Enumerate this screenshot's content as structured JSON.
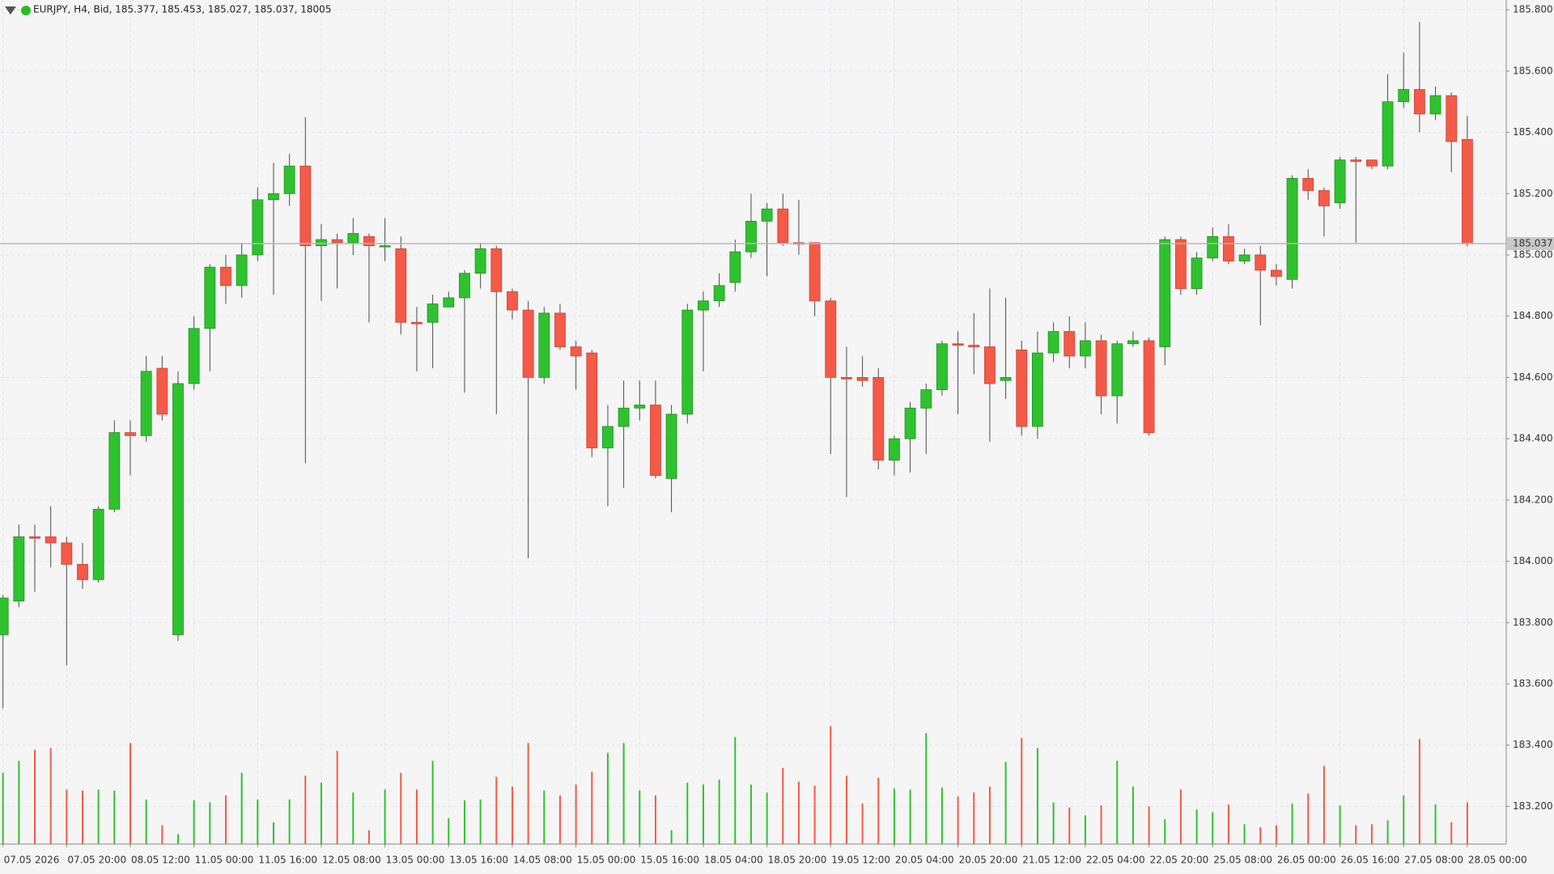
{
  "chart_data": {
    "type": "candlestick",
    "title": "EURJPY, H4, Bid, 185.377, 185.453, 185.027, 185.037, 18005",
    "categories": [
      "07.05 2026",
      null,
      null,
      null,
      "07.05 20:00",
      null,
      null,
      null,
      "08.05 12:00",
      null,
      null,
      null,
      "11.05 00:00",
      null,
      null,
      null,
      "11.05 16:00",
      null,
      null,
      null,
      "12.05 08:00",
      null,
      null,
      null,
      "13.05 00:00",
      null,
      null,
      null,
      "13.05 16:00",
      null,
      null,
      null,
      "14.05 08:00",
      null,
      null,
      null,
      "15.05 00:00",
      null,
      null,
      null,
      "15.05 16:00",
      null,
      null,
      null,
      "18.05 04:00",
      null,
      null,
      null,
      "18.05 20:00",
      null,
      null,
      null,
      "19.05 12:00",
      null,
      null,
      null,
      "20.05 04:00",
      null,
      null,
      null,
      "20.05 20:00",
      null,
      null,
      null,
      "21.05 12:00",
      null,
      null,
      null,
      "22.05 04:00",
      null,
      null,
      null,
      "22.05 20:00",
      null,
      null,
      null,
      "25.05 08:00",
      null,
      null,
      null,
      "26.05 00:00",
      null,
      null,
      null,
      "26.05 16:00",
      null,
      null,
      null,
      "27.05 08:00",
      null,
      null,
      null,
      "28.05 00:00"
    ],
    "open": [
      183.76,
      183.87,
      184.08,
      184.08,
      184.06,
      183.99,
      183.94,
      184.17,
      184.42,
      184.41,
      184.63,
      183.76,
      184.58,
      184.76,
      184.96,
      184.9,
      185.0,
      185.18,
      185.2,
      185.29,
      185.03,
      185.05,
      185.04,
      185.06,
      185.03,
      185.02,
      184.78,
      184.78,
      184.83,
      184.86,
      184.94,
      185.02,
      184.88,
      184.82,
      184.6,
      184.81,
      184.7,
      184.68,
      184.37,
      184.44,
      184.5,
      184.51,
      184.27,
      184.48,
      184.82,
      184.85,
      184.91,
      185.01,
      185.11,
      185.15,
      185.04,
      185.04,
      184.85,
      184.6,
      184.6,
      184.6,
      184.33,
      184.4,
      184.5,
      184.56,
      184.71,
      184.705,
      184.7,
      184.59,
      184.69,
      184.44,
      184.68,
      184.75,
      184.67,
      184.72,
      184.54,
      184.71,
      184.72,
      184.7,
      185.05,
      184.89,
      184.99,
      185.06,
      184.98,
      185.0,
      184.95,
      184.92,
      185.25,
      185.21,
      185.17,
      185.31,
      185.31,
      185.29,
      185.5,
      185.54,
      185.46,
      185.52,
      185.377
    ],
    "high": [
      183.89,
      184.12,
      184.12,
      184.18,
      184.08,
      184.06,
      184.18,
      184.46,
      184.46,
      184.67,
      184.67,
      184.62,
      184.8,
      184.97,
      185.0,
      185.04,
      185.22,
      185.3,
      185.33,
      185.45,
      185.1,
      185.07,
      185.12,
      185.07,
      185.12,
      185.06,
      184.83,
      184.87,
      184.88,
      184.95,
      185.04,
      185.03,
      184.89,
      184.85,
      184.83,
      184.84,
      184.72,
      184.69,
      184.51,
      184.59,
      184.59,
      184.59,
      184.51,
      184.84,
      184.88,
      184.94,
      185.05,
      185.2,
      185.17,
      185.2,
      185.18,
      185.04,
      184.86,
      184.7,
      184.67,
      184.63,
      184.41,
      184.52,
      184.58,
      184.72,
      184.75,
      184.81,
      184.89,
      184.86,
      184.72,
      184.75,
      184.78,
      184.8,
      184.78,
      184.74,
      184.72,
      184.75,
      184.73,
      185.06,
      185.06,
      185.01,
      185.09,
      185.1,
      185.02,
      185.03,
      184.97,
      185.26,
      185.28,
      185.22,
      185.32,
      185.32,
      185.31,
      185.59,
      185.66,
      185.76,
      185.55,
      185.53,
      185.453
    ],
    "low": [
      183.52,
      183.85,
      183.9,
      183.98,
      183.66,
      183.91,
      183.93,
      184.16,
      184.28,
      184.39,
      184.46,
      183.74,
      184.56,
      184.62,
      184.84,
      184.86,
      184.98,
      184.87,
      185.16,
      184.32,
      184.85,
      184.89,
      185.0,
      184.78,
      184.98,
      184.74,
      184.62,
      184.63,
      184.83,
      184.55,
      184.89,
      184.48,
      184.79,
      184.01,
      184.58,
      184.69,
      184.56,
      184.34,
      184.18,
      184.24,
      184.46,
      184.27,
      184.16,
      184.45,
      184.62,
      184.83,
      184.88,
      184.99,
      184.93,
      185.03,
      185.0,
      184.8,
      184.35,
      184.21,
      184.57,
      184.3,
      184.28,
      184.29,
      184.35,
      184.54,
      184.48,
      184.61,
      184.39,
      184.53,
      184.41,
      184.4,
      184.65,
      184.63,
      184.63,
      184.48,
      184.45,
      184.7,
      184.41,
      184.64,
      184.87,
      184.87,
      184.98,
      184.97,
      184.97,
      184.77,
      184.9,
      184.89,
      185.18,
      185.06,
      185.15,
      185.04,
      185.28,
      185.28,
      185.48,
      185.4,
      185.44,
      185.27,
      185.027
    ],
    "close": [
      183.88,
      184.08,
      184.075,
      184.06,
      183.99,
      183.94,
      184.17,
      184.42,
      184.41,
      184.62,
      184.48,
      184.58,
      184.76,
      184.96,
      184.9,
      185.0,
      185.18,
      185.2,
      185.29,
      185.03,
      185.05,
      185.04,
      185.07,
      185.03,
      185.03,
      184.78,
      184.775,
      184.84,
      184.86,
      184.94,
      185.02,
      184.88,
      184.82,
      184.6,
      184.81,
      184.7,
      184.67,
      184.37,
      184.44,
      184.5,
      184.51,
      184.28,
      184.48,
      184.82,
      184.85,
      184.9,
      185.01,
      185.11,
      185.15,
      185.04,
      185.035,
      184.85,
      184.6,
      184.595,
      184.59,
      184.33,
      184.4,
      184.5,
      184.56,
      184.71,
      184.705,
      184.7,
      184.58,
      184.6,
      184.44,
      184.68,
      184.75,
      184.67,
      184.72,
      184.54,
      184.71,
      184.72,
      184.42,
      185.05,
      184.89,
      184.99,
      185.06,
      184.98,
      185.0,
      184.95,
      184.93,
      185.25,
      185.21,
      185.16,
      185.31,
      185.305,
      185.29,
      185.5,
      185.54,
      185.46,
      185.52,
      185.37,
      185.037
    ],
    "volume": [
      30888,
      36036,
      40755,
      41613,
      23595,
      23166,
      23595,
      23166,
      43758,
      19305,
      8151,
      4290,
      18876,
      18018,
      21021,
      30888,
      19305,
      9438,
      19305,
      29601,
      26598,
      40326,
      22308,
      6006,
      23595,
      30888,
      23595,
      36036,
      11154,
      18876,
      19305,
      29172,
      24882,
      43758,
      23166,
      21021,
      25740,
      31317,
      39468,
      43758,
      23166,
      21021,
      6006,
      26598,
      25740,
      27885,
      46332,
      25740,
      22308,
      33033,
      27027,
      25311,
      51051,
      29601,
      17589,
      28743,
      24024,
      23595,
      48048,
      24453,
      20592,
      22308,
      24882,
      35607,
      45903,
      41613,
      18018,
      15873,
      12441,
      16731,
      36036,
      24882,
      16302,
      10725,
      23595,
      15015,
      13728,
      17160,
      8580,
      7293,
      8151,
      17589,
      21879,
      33891,
      16731,
      8151,
      8580,
      10296,
      21021,
      45474,
      17160,
      9438,
      18005
    ],
    "colors": {
      "up": "#2fc22f",
      "down": "#f45a47"
    },
    "ylim": [
      183.077,
      185.832
    ],
    "yticks": [
      {
        "value": 183.2,
        "label": "183.200"
      },
      {
        "value": 183.4,
        "label": "183.400"
      },
      {
        "value": 183.6,
        "label": "183.600"
      },
      {
        "value": 183.8,
        "label": "183.800"
      },
      {
        "value": 184.0,
        "label": "184.000"
      },
      {
        "value": 184.2,
        "label": "184.200"
      },
      {
        "value": 184.4,
        "label": "184.400"
      },
      {
        "value": 184.6,
        "label": "184.600"
      },
      {
        "value": 184.8,
        "label": "184.800"
      },
      {
        "value": 185.0,
        "label": "185.000"
      },
      {
        "value": 185.2,
        "label": "185.200"
      },
      {
        "value": 185.4,
        "label": "185.400"
      },
      {
        "value": 185.6,
        "label": "185.600"
      },
      {
        "value": 185.8,
        "label": "185.800"
      }
    ],
    "current_price": {
      "value": 185.037,
      "label": "185.037"
    },
    "grid": true
  }
}
